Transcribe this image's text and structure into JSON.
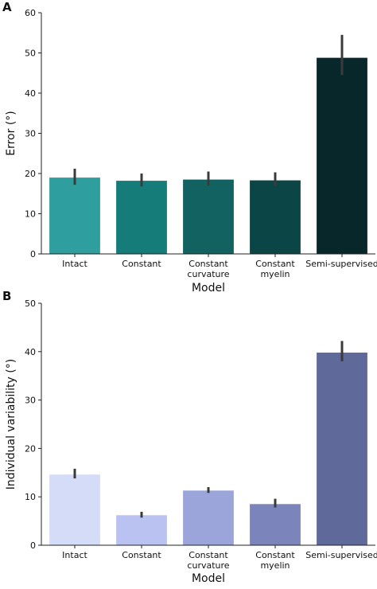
{
  "figure": {
    "panels": [
      {
        "letter": "A"
      },
      {
        "letter": "B"
      }
    ]
  },
  "chart_data": [
    {
      "type": "bar",
      "panel": "A",
      "title": "",
      "xlabel": "Model",
      "ylabel": "Error  (°)",
      "ylim": [
        0,
        60
      ],
      "yticks": [
        0,
        10,
        20,
        30,
        40,
        50,
        60
      ],
      "grid": false,
      "categories": [
        "Intact",
        "Constant",
        "Constant\ncurvature",
        "Constant\nmyelin",
        "Semi-supervised"
      ],
      "values": [
        19.0,
        18.2,
        18.5,
        18.3,
        48.8
      ],
      "error_low": [
        17.2,
        16.8,
        17.0,
        16.8,
        44.5
      ],
      "error_high": [
        21.2,
        20.0,
        20.5,
        20.3,
        54.5
      ],
      "colors": [
        "#2e9e9e",
        "#167c7a",
        "#116260",
        "#0c4545",
        "#08272b"
      ],
      "error_color": "#3b3b3b"
    },
    {
      "type": "bar",
      "panel": "B",
      "title": "",
      "xlabel": "Model",
      "ylabel": "Individual variability  (°)",
      "ylim": [
        0,
        50
      ],
      "yticks": [
        0,
        10,
        20,
        30,
        40,
        50
      ],
      "grid": false,
      "categories": [
        "Intact",
        "Constant",
        "Constant\ncurvature",
        "Constant\nmyelin",
        "Semi-supervised"
      ],
      "values": [
        14.6,
        6.2,
        11.3,
        8.5,
        39.8
      ],
      "error_low": [
        13.8,
        5.7,
        10.8,
        7.8,
        38.0
      ],
      "error_high": [
        15.8,
        6.9,
        12.0,
        9.6,
        42.2
      ],
      "colors": [
        "#d5dcf8",
        "#b9c2f1",
        "#9ba5da",
        "#7b84bb",
        "#5f699a"
      ],
      "error_color": "#3b3b3b"
    }
  ]
}
